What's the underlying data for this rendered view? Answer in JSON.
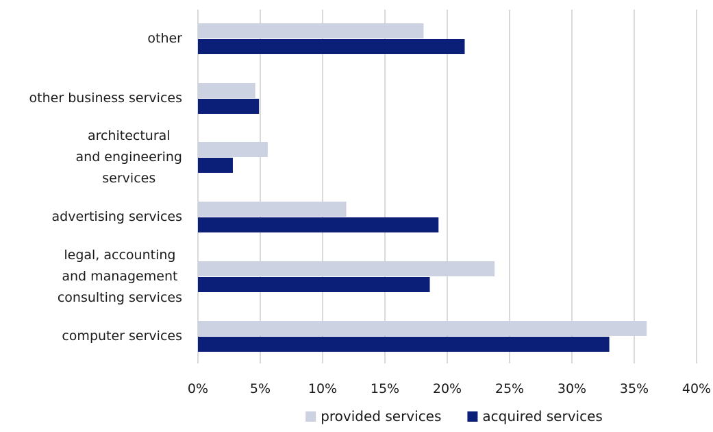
{
  "chart_data": {
    "type": "bar",
    "orientation": "horizontal",
    "categories": [
      [
        "other"
      ],
      [
        "other business services"
      ],
      [
        "architectural",
        "and engineering",
        "services"
      ],
      [
        "advertising services"
      ],
      [
        "legal, accounting",
        "and management",
        "consulting services"
      ],
      [
        "computer services"
      ]
    ],
    "series": [
      {
        "name": "provided services",
        "color": "#cdd2e3",
        "values": [
          18.1,
          4.6,
          5.6,
          11.9,
          23.8,
          36.0
        ]
      },
      {
        "name": "acquired services",
        "color": "#0b1f78",
        "values": [
          21.4,
          4.9,
          2.8,
          19.3,
          18.6,
          33.0
        ]
      }
    ],
    "xlim": [
      0,
      40
    ],
    "x_ticks": [
      0,
      5,
      10,
      15,
      20,
      25,
      30,
      35,
      40
    ],
    "x_tick_labels": [
      "0%",
      "5%",
      "10%",
      "15%",
      "20%",
      "25%",
      "30%",
      "35%",
      "40%"
    ],
    "grid": "vertical",
    "legend_position": "bottom"
  }
}
